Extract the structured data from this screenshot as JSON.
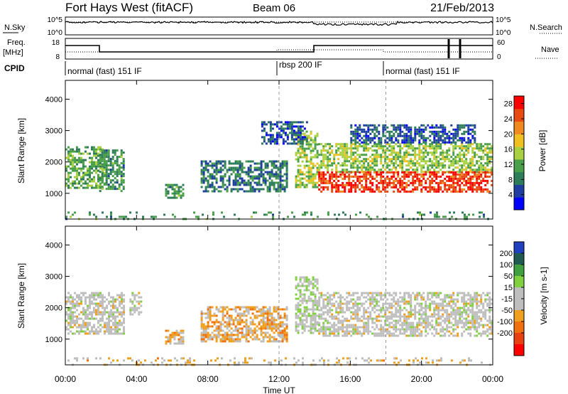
{
  "header": {
    "station": "Fort Hays West (fitACF)",
    "beam": "Beam 06",
    "date": "21/Feb/2013"
  },
  "noise_panel": {
    "left_label": "N.Sky",
    "right_label": "N.Search",
    "left_ticks": [
      "10^5",
      "10^0"
    ],
    "right_ticks": [
      "10^5",
      "10^0"
    ]
  },
  "freq_panel": {
    "left_label_1": "Freq.",
    "left_label_2": "[MHz]",
    "right_label": "Nave",
    "left_ticks": [
      "18",
      "8"
    ],
    "right_ticks": [
      "60",
      "0"
    ]
  },
  "cpid_panel": {
    "label": "CPID",
    "segments": [
      {
        "label": "normal (fast) 151 IF",
        "start_hour": 0,
        "end_hour": 12
      },
      {
        "label": "rbsp 200 IF",
        "start_hour": 12,
        "end_hour": 18
      },
      {
        "label": "normal (fast) 151 IF",
        "start_hour": 18,
        "end_hour": 24
      }
    ]
  },
  "colors": {
    "power_scale": [
      "#0000ff",
      "#1f3fa0",
      "#2e7d5a",
      "#4aa04a",
      "#a8d040",
      "#f0c020",
      "#f08a20",
      "#e84a10",
      "#ff0000"
    ],
    "velocity_scale": [
      "#2040c0",
      "#205a50",
      "#40a040",
      "#80d040",
      "#bebebe",
      "#bebebe",
      "#f0a020",
      "#f07010",
      "#e84010",
      "#ff0000"
    ]
  },
  "chart_data": [
    {
      "type": "heatmap",
      "title": "",
      "ylabel": "Slant Range [km]",
      "xlabel": "",
      "xlim": [
        0,
        24
      ],
      "ylim": [
        180,
        4600
      ],
      "x_ticks": [
        "00:00",
        "04:00",
        "08:00",
        "12:00",
        "16:00",
        "20:00",
        "00:00"
      ],
      "y_ticks": [
        1000,
        2000,
        3000,
        4000
      ],
      "colorbar": {
        "label": "Power [dB]",
        "ticks": [
          4,
          8,
          12,
          16,
          20,
          24,
          28
        ],
        "range": [
          0,
          30
        ]
      },
      "regions": [
        {
          "x": [
            0.0,
            2.2
          ],
          "y": [
            1200,
            2500
          ],
          "value": 12
        },
        {
          "x": [
            1.9,
            3.3
          ],
          "y": [
            1100,
            2400
          ],
          "value": 10
        },
        {
          "x": [
            5.6,
            6.6
          ],
          "y": [
            850,
            1300
          ],
          "value": 10
        },
        {
          "x": [
            7.6,
            12.4
          ],
          "y": [
            1050,
            2050
          ],
          "value": 8
        },
        {
          "x": [
            12.9,
            14.2
          ],
          "y": [
            1200,
            3000
          ],
          "value": 14
        },
        {
          "x": [
            14.2,
            24.0
          ],
          "y": [
            1700,
            2600
          ],
          "value": 14
        },
        {
          "x": [
            14.2,
            24.0
          ],
          "y": [
            1050,
            1700
          ],
          "value": 26
        },
        {
          "x": [
            11.0,
            13.6
          ],
          "y": [
            2600,
            3300
          ],
          "value": 6
        },
        {
          "x": [
            16.0,
            23.0
          ],
          "y": [
            2600,
            3200
          ],
          "value": 6
        },
        {
          "x": [
            0.0,
            24.0
          ],
          "y": [
            180,
            420
          ],
          "value": 10
        }
      ]
    },
    {
      "type": "heatmap",
      "title": "",
      "ylabel": "Slant Range [km]",
      "xlabel": "Time UT",
      "xlim": [
        0,
        24
      ],
      "ylim": [
        180,
        4600
      ],
      "x_ticks": [
        "00:00",
        "04:00",
        "08:00",
        "12:00",
        "16:00",
        "20:00",
        "00:00"
      ],
      "y_ticks": [
        1000,
        2000,
        3000,
        4000
      ],
      "colorbar": {
        "label": "Velocity [m s-1]",
        "ticks": [
          200,
          100,
          50,
          15,
          -15,
          -50,
          -100,
          -200
        ],
        "range": [
          -250,
          250
        ]
      },
      "regions": [
        {
          "x": [
            0.0,
            3.3
          ],
          "y": [
            1200,
            2500
          ],
          "value": 0
        },
        {
          "x": [
            3.6,
            4.3
          ],
          "y": [
            1800,
            2500
          ],
          "value": 0
        },
        {
          "x": [
            5.6,
            6.6
          ],
          "y": [
            850,
            1300
          ],
          "value": -60
        },
        {
          "x": [
            7.6,
            12.4
          ],
          "y": [
            950,
            2050
          ],
          "value": -60
        },
        {
          "x": [
            12.9,
            14.2
          ],
          "y": [
            1200,
            3000
          ],
          "value": 30
        },
        {
          "x": [
            14.2,
            24.0
          ],
          "y": [
            1100,
            2500
          ],
          "value": 0
        },
        {
          "x": [
            0.0,
            24.0
          ],
          "y": [
            180,
            420
          ],
          "value": -40
        }
      ]
    }
  ]
}
